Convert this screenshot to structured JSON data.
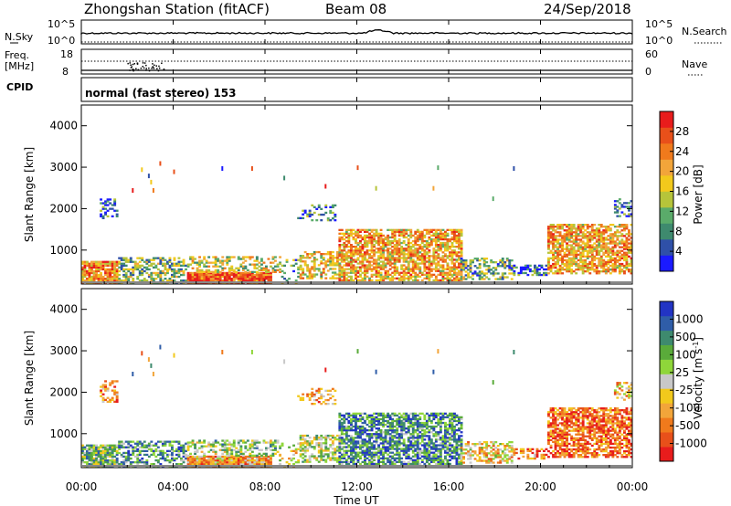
{
  "header": {
    "title": "Zhongshan Station (fitACF)",
    "beam": "Beam 08",
    "date": "24/Sep/2018"
  },
  "panels": {
    "nsky_label": "N.Sky",
    "nsky_top": "10^5",
    "nsky_bottom": "10^0",
    "nsearch_label": "N.Search",
    "nsearch_top": "10^5",
    "nsearch_bottom": "10^0",
    "freq_label": "Freq.",
    "freq_unit": "[MHz]",
    "freq_top": "18",
    "freq_bottom": "8",
    "nave_label": "Nave",
    "nave_top": "60",
    "nave_bottom": "0",
    "cpid_label": "CPID",
    "mode_text": "normal (fast stereo) 153"
  },
  "chart_data": [
    {
      "type": "heatmap",
      "name": "power",
      "ylabel": "Slant Range [km]",
      "xlabel": "Time UT",
      "ylim": [
        180,
        4500
      ],
      "xlim": [
        0,
        24
      ],
      "yticks": [
        "1000",
        "2000",
        "3000",
        "4000"
      ],
      "colorbar_label": "Power [dB]",
      "colorbar_ticks": [
        "4",
        "8",
        "12",
        "16",
        "20",
        "24",
        "28"
      ],
      "colors": [
        "#1a1aff",
        "#2f50a8",
        "#3e8a6e",
        "#5aab6a",
        "#b6c43a",
        "#f2c91c",
        "#f2a53a",
        "#f07a1c",
        "#e8501a",
        "#e81c1c"
      ]
    },
    {
      "type": "heatmap",
      "name": "velocity",
      "ylabel": "Slant Range [km]",
      "xlabel": "Time UT",
      "ylim": [
        180,
        4500
      ],
      "xlim": [
        0,
        24
      ],
      "yticks": [
        "1000",
        "2000",
        "3000",
        "4000"
      ],
      "xticks": [
        "00:00",
        "04:00",
        "08:00",
        "12:00",
        "16:00",
        "20:00",
        "00:00"
      ],
      "colorbar_label": "Velocity [m s",
      "colorbar_label_sup": "-1",
      "colorbar_label_end": "]",
      "colorbar_ticks": [
        "1000",
        "500",
        "100",
        "25",
        "-25",
        "-100",
        "-500",
        "-1000"
      ],
      "colors": [
        "#2234c4",
        "#2f5da8",
        "#3e8a6e",
        "#5aab3a",
        "#8fd63a",
        "#c8c8c8",
        "#f2c91c",
        "#f2a53a",
        "#f07a1c",
        "#e8501a",
        "#e81c1c"
      ]
    }
  ]
}
